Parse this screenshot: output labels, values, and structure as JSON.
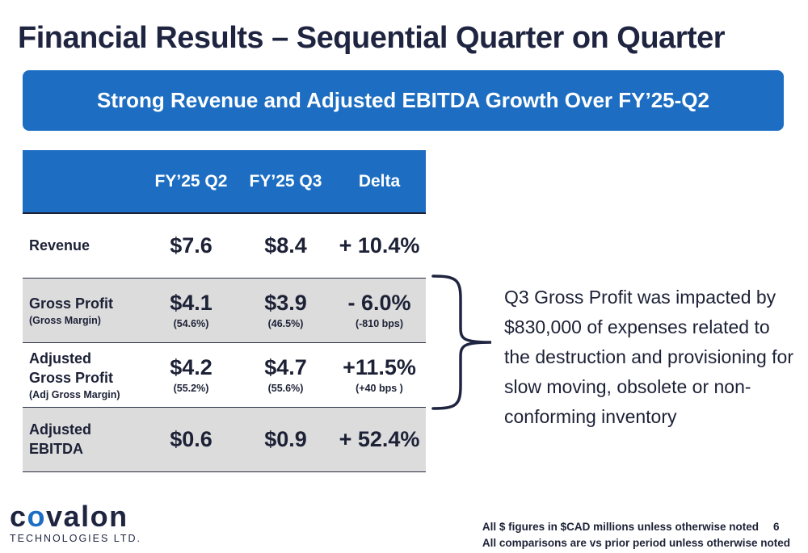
{
  "title": "Financial Results – Sequential Quarter on Quarter",
  "banner": "Strong Revenue and Adjusted EBITDA Growth Over FY’25-Q2",
  "table": {
    "headers": [
      "",
      "FY’25 Q2",
      "FY’25 Q3",
      "Delta"
    ],
    "rows": [
      {
        "label": "Revenue",
        "label2": "",
        "sublabel": "",
        "q2": "$7.6",
        "q2_sub": "",
        "q3": "$8.4",
        "q3_sub": "",
        "delta": "+ 10.4%",
        "delta_sub": ""
      },
      {
        "label": "Gross Profit",
        "label2": "",
        "sublabel": "(Gross Margin)",
        "q2": "$4.1",
        "q2_sub": "(54.6%)",
        "q3": "$3.9",
        "q3_sub": "(46.5%)",
        "delta": "- 6.0%",
        "delta_sub": "(-810 bps)"
      },
      {
        "label": "Adjusted",
        "label2": "Gross Profit",
        "sublabel": "(Adj Gross Margin)",
        "q2": "$4.2",
        "q2_sub": "(55.2%)",
        "q3": "$4.7",
        "q3_sub": "(55.6%)",
        "delta": "+11.5%",
        "delta_sub": "(+40 bps )"
      },
      {
        "label": "Adjusted",
        "label2": "EBITDA",
        "sublabel": "",
        "q2": "$0.6",
        "q2_sub": "",
        "q3": "$0.9",
        "q3_sub": "",
        "delta": "+ 52.4%",
        "delta_sub": ""
      }
    ]
  },
  "note": "Q3 Gross Profit was impacted by $830,000 of expenses related to the destruction and provisioning for slow moving, obsolete or non-conforming inventory",
  "logo": {
    "word_part1": "c",
    "word_o": "o",
    "word_part2": "valon",
    "sub": "TECHNOLOGIES LTD."
  },
  "footer": {
    "line1": "All $ figures in $CAD millions unless otherwise noted",
    "page_number": "6",
    "line2": "All comparisons are vs prior period unless otherwise noted"
  },
  "colors": {
    "accent_blue": "#1d6ec2",
    "dark_navy": "#1f2540",
    "row_grey": "#dcdcdc"
  }
}
